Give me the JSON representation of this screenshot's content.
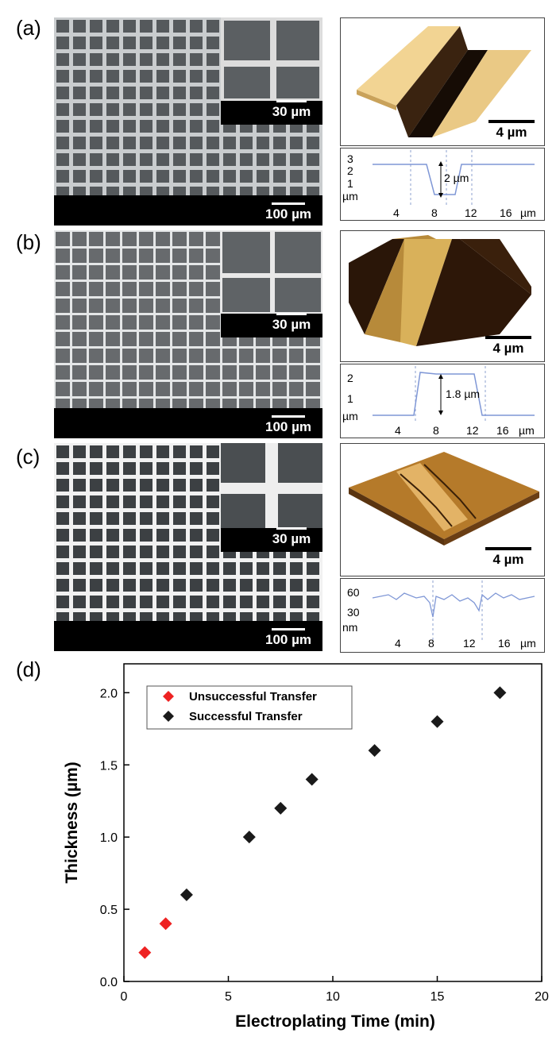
{
  "panels": {
    "a": {
      "label": "(a)",
      "sem_scale": "100 µm",
      "inset_scale": "30 µm",
      "afm_scale": "4 µm",
      "profile": {
        "yticks": [
          "3",
          "2",
          "1"
        ],
        "yunit": "µm",
        "xticks": [
          "4",
          "8",
          "12",
          "16"
        ],
        "xunit": "µm",
        "annotation": "2 µm"
      }
    },
    "b": {
      "label": "(b)",
      "sem_scale": "100 µm",
      "inset_scale": "30 µm",
      "afm_scale": "4 µm",
      "profile": {
        "yticks": [
          "2",
          "1"
        ],
        "yunit": "µm",
        "xticks": [
          "4",
          "8",
          "12",
          "16"
        ],
        "xunit": "µm",
        "annotation": "1.8 µm"
      }
    },
    "c": {
      "label": "(c)",
      "sem_scale": "100 µm",
      "inset_scale": "30 µm",
      "afm_scale": "4 µm",
      "profile": {
        "yticks": [
          "60",
          "30"
        ],
        "yunit": "nm",
        "xticks": [
          "4",
          "8",
          "12",
          "16"
        ],
        "xunit": "µm",
        "annotation": ""
      }
    },
    "d": {
      "label": "(d)"
    }
  },
  "colors": {
    "unsuccessful": "#ee2222",
    "successful": "#1a1a1a",
    "profile_line": "#7f97d6"
  },
  "chart_data": {
    "type": "scatter",
    "xlabel": "Electroplating Time (min)",
    "ylabel": "Thickness (µm)",
    "xlim": [
      0,
      20
    ],
    "ylim": [
      0,
      2.2
    ],
    "xticks": [
      "0",
      "5",
      "10",
      "15",
      "20"
    ],
    "yticks": [
      "0.0",
      "0.5",
      "1.0",
      "1.5",
      "2.0"
    ],
    "legend_position": "top-left",
    "series": [
      {
        "name": "Unsuccessful Transfer",
        "color": "#ee2222",
        "marker": "diamond",
        "x": [
          1,
          2
        ],
        "y": [
          0.2,
          0.4
        ]
      },
      {
        "name": "Successful Transfer",
        "color": "#1a1a1a",
        "marker": "diamond",
        "x": [
          3,
          6,
          7.5,
          9,
          12,
          15,
          18
        ],
        "y": [
          0.6,
          1.0,
          1.2,
          1.4,
          1.6,
          1.8,
          2.0
        ]
      }
    ]
  }
}
